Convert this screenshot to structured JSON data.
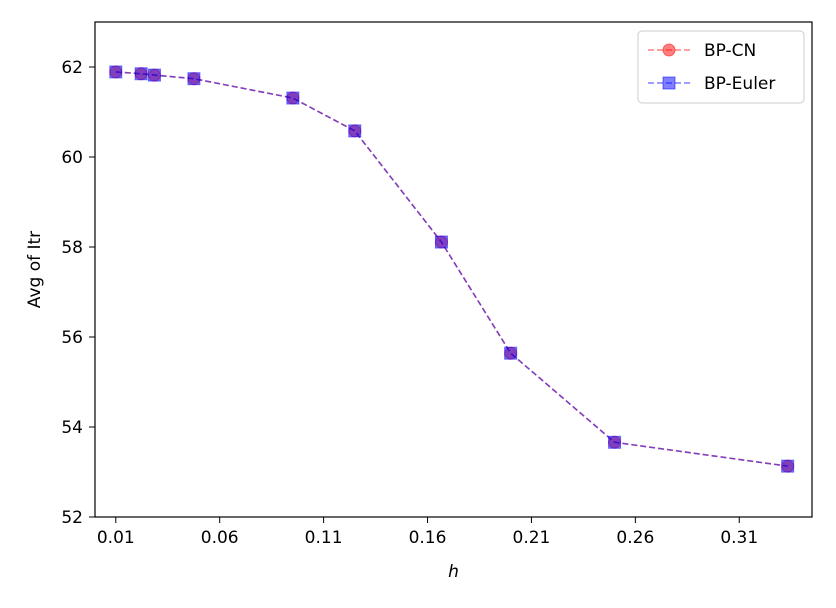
{
  "chart_data": {
    "type": "line",
    "xlabel": "h",
    "ylabel": "Avg of Itr",
    "xlim": [
      0.0,
      0.345
    ],
    "ylim": [
      52,
      63
    ],
    "xticks": [
      0.01,
      0.06,
      0.11,
      0.16,
      0.21,
      0.26,
      0.31
    ],
    "xtick_labels": [
      "0.01",
      "0.06",
      "0.11",
      "0.16",
      "0.21",
      "0.26",
      "0.31"
    ],
    "yticks": [
      52,
      54,
      56,
      58,
      60,
      62
    ],
    "ytick_labels": [
      "52",
      "54",
      "56",
      "58",
      "60",
      "62"
    ],
    "grid": false,
    "legend_position": "top-right",
    "x": [
      0.01,
      0.0222,
      0.0286,
      0.0476,
      0.0952,
      0.125,
      0.1667,
      0.2,
      0.25,
      0.3333
    ],
    "series": [
      {
        "name": "BP-CN",
        "color": "#ff0000",
        "marker": "circle",
        "linestyle": "dashed",
        "values": [
          61.89,
          61.85,
          61.82,
          61.74,
          61.31,
          60.58,
          58.11,
          55.64,
          53.66,
          53.13
        ]
      },
      {
        "name": "BP-Euler",
        "color": "#0000ff",
        "marker": "square",
        "linestyle": "dashed",
        "values": [
          61.89,
          61.85,
          61.82,
          61.74,
          61.31,
          60.58,
          58.11,
          55.64,
          53.66,
          53.13
        ]
      }
    ]
  }
}
